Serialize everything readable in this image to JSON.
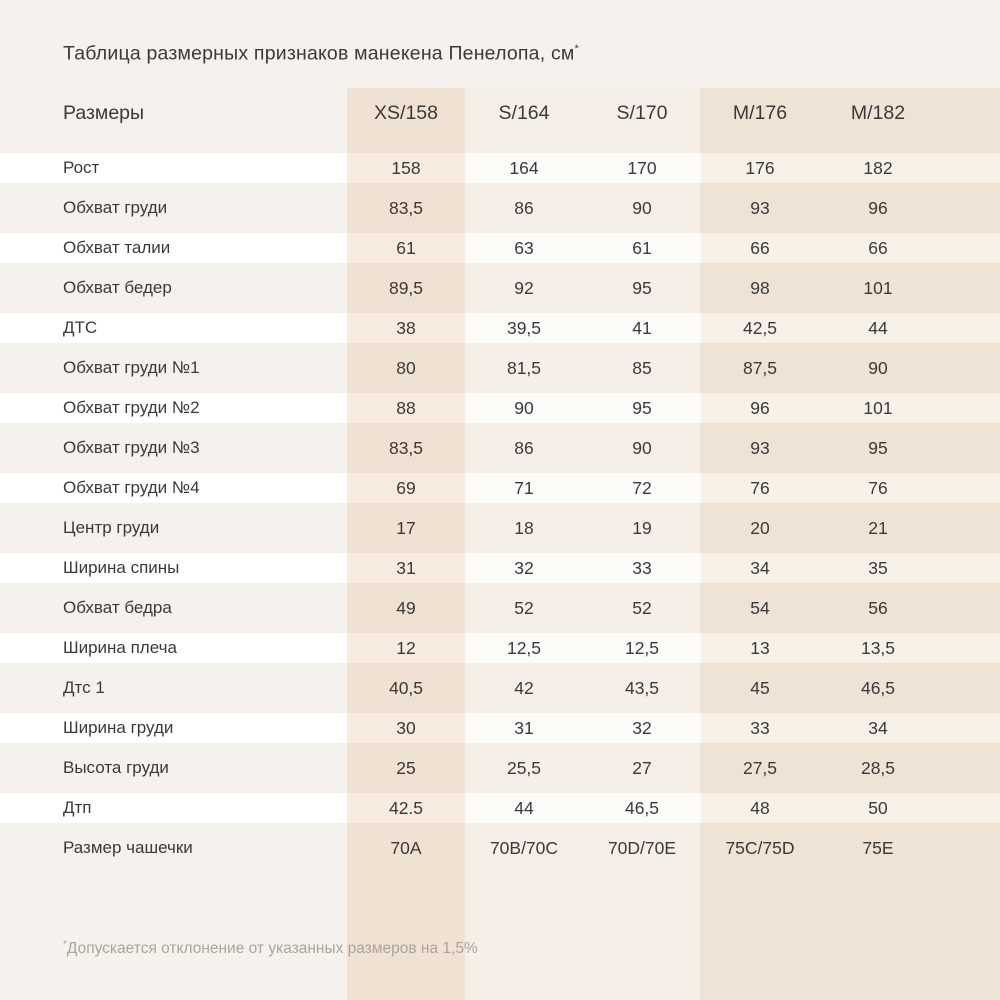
{
  "title": "Таблица размерных признаков манекена Пенелопа, см",
  "title_asterisk": "*",
  "table": {
    "header": {
      "label": "Размеры",
      "sizes": [
        "XS/158",
        "S/164",
        "S/170",
        "M/176",
        "M/182"
      ]
    },
    "rows": [
      {
        "label": "Рост",
        "values": [
          "158",
          "164",
          "170",
          "176",
          "182"
        ]
      },
      {
        "label": "Обхват груди",
        "values": [
          "83,5",
          "86",
          "90",
          "93",
          "96"
        ]
      },
      {
        "label": "Обхват талии",
        "values": [
          "61",
          "63",
          "61",
          "66",
          "66"
        ]
      },
      {
        "label": "Обхват бедер",
        "values": [
          "89,5",
          "92",
          "95",
          "98",
          "101"
        ]
      },
      {
        "label": "ДТС",
        "values": [
          "38",
          "39,5",
          "41",
          "42,5",
          "44"
        ]
      },
      {
        "label": "Обхват груди №1",
        "values": [
          "80",
          "81,5",
          "85",
          "87,5",
          "90"
        ]
      },
      {
        "label": "Обхват груди №2",
        "values": [
          "88",
          "90",
          "95",
          "96",
          "101"
        ]
      },
      {
        "label": "Обхват груди №3",
        "values": [
          "83,5",
          "86",
          "90",
          "93",
          "95"
        ]
      },
      {
        "label": "Обхват груди №4",
        "values": [
          "69",
          "71",
          "72",
          "76",
          "76"
        ]
      },
      {
        "label": "Центр груди",
        "values": [
          "17",
          "18",
          "19",
          "20",
          "21"
        ]
      },
      {
        "label": "Ширина спины",
        "values": [
          "31",
          "32",
          "33",
          "34",
          "35"
        ]
      },
      {
        "label": "Обхват бедра",
        "values": [
          "49",
          "52",
          "52",
          "54",
          "56"
        ]
      },
      {
        "label": "Ширина плеча",
        "values": [
          "12",
          "12,5",
          "12,5",
          "13",
          "13,5"
        ]
      },
      {
        "label": "Дтс 1",
        "values": [
          "40,5",
          "42",
          "43,5",
          "45",
          "46,5"
        ]
      },
      {
        "label": "Ширина груди",
        "values": [
          "30",
          "31",
          "32",
          "33",
          "34"
        ]
      },
      {
        "label": "Высота груди",
        "values": [
          "25",
          "25,5",
          "27",
          "27,5",
          "28,5"
        ]
      },
      {
        "label": "Дтп",
        "values": [
          "42.5",
          "44",
          "46,5",
          "48",
          "50"
        ]
      },
      {
        "label": "Размер чашечки",
        "values": [
          "70A",
          "70B/70C",
          "70D/70E",
          "75C/75D",
          "75E"
        ]
      }
    ]
  },
  "footnote_asterisk": "*",
  "footnote": "Допускается отклонение от указанных размеров на 1,5%",
  "colors": {
    "page_bg": "#f5f1ec",
    "row_white": "#ffffff",
    "xs_white": "#f8ebdf",
    "xs_beige": "#f0e2d2",
    "s_white": "#fdfbf7",
    "s_beige": "#f5efe7",
    "m_white": "#f8f1e8",
    "m_beige": "#eee3d4",
    "text": "#3a3a3a",
    "footnote": "#aba49c"
  }
}
